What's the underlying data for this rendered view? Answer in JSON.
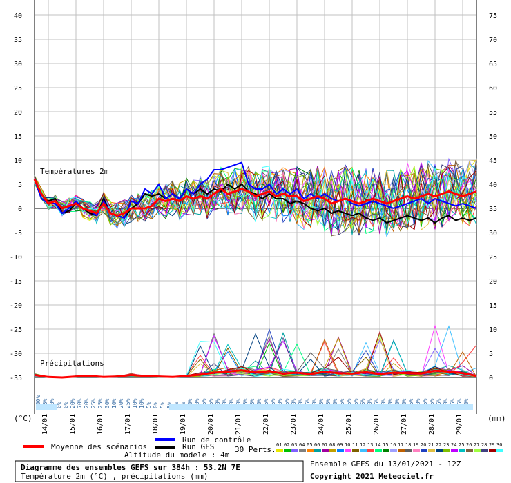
{
  "chart_data": {
    "type": "line",
    "title": "Diagramme des ensembles GEFS sur 384h : 53.2N 7E",
    "subtitle": "Température 2m (°C) , précipitations (mm)",
    "model_altitude": "Altitude du modele : 4m",
    "run_label": "Ensemble GEFS du 13/01/2021 - 12Z",
    "copyright": "Copyright 2021 Meteociel.fr",
    "temp_label": "Températures 2m",
    "precip_label": "Précipitations",
    "left_unit": "(°C)",
    "right_unit": "(mm)",
    "left_axis": {
      "min": -35,
      "max": 40,
      "ticks": [
        40,
        35,
        30,
        25,
        20,
        15,
        10,
        5,
        0,
        -5,
        -10,
        -15,
        -20,
        -25,
        -30,
        -35
      ]
    },
    "right_axis": {
      "min": 0,
      "max": 75,
      "ticks": [
        75,
        70,
        65,
        60,
        55,
        50,
        45,
        40,
        35,
        30,
        25,
        20,
        15,
        10,
        5,
        0
      ]
    },
    "x_axis": {
      "start_day": 13.5,
      "end_day": 29.5,
      "labels": [
        "14/01",
        "15/01",
        "16/01",
        "17/01",
        "18/01",
        "19/01",
        "20/01",
        "21/01",
        "22/01",
        "23/01",
        "24/01",
        "25/01",
        "26/01",
        "27/01",
        "28/01",
        "29/01"
      ]
    },
    "grid": true,
    "legend": {
      "mean": "Moyenne des scénarios",
      "control": "Run de contrôle",
      "gfs": "Run GFS",
      "perts": "30 Perts.",
      "members": [
        "01",
        "02",
        "03",
        "04",
        "05",
        "06",
        "07",
        "08",
        "09",
        "10",
        "11",
        "12",
        "13",
        "14",
        "15",
        "16",
        "17",
        "18",
        "19",
        "20",
        "21",
        "22",
        "23",
        "24",
        "25",
        "26",
        "27",
        "28",
        "29",
        "30"
      ]
    },
    "member_colors": [
      "#e8e800",
      "#00c000",
      "#8060ff",
      "#808080",
      "#ff8000",
      "#00a0a0",
      "#a000a0",
      "#c0a000",
      "#0080ff",
      "#ff40ff",
      "#806000",
      "#40c0ff",
      "#ff4040",
      "#00ff80",
      "#008000",
      "#a0a0ff",
      "#c06000",
      "#606060",
      "#ff80c0",
      "#2040c0",
      "#e0c040",
      "#004080",
      "#80c000",
      "#c000ff",
      "#00c0c0",
      "#806040",
      "#a0ff40",
      "#404080",
      "#a00000",
      "#40ffff"
    ],
    "series": [
      {
        "name": "Moyenne des scénarios",
        "color": "#ff0000",
        "x": [
          13.5,
          13.75,
          14,
          14.25,
          14.5,
          14.75,
          15,
          15.25,
          15.5,
          15.75,
          16,
          16.25,
          16.5,
          16.75,
          17,
          17.25,
          17.5,
          17.75,
          18,
          18.25,
          18.5,
          18.75,
          19,
          19.25,
          19.5,
          19.75,
          20,
          20.25,
          20.5,
          20.75,
          21,
          21.25,
          21.5,
          21.75,
          22,
          22.25,
          22.5,
          22.75,
          23,
          23.25,
          23.5,
          23.75,
          24,
          24.25,
          24.5,
          24.75,
          25,
          25.25,
          25.5,
          25.75,
          26,
          26.25,
          26.5,
          26.75,
          27,
          27.25,
          27.5,
          27.75,
          28,
          28.25,
          28.5,
          28.75,
          29,
          29.25,
          29.5
        ],
        "y": [
          6,
          3,
          1,
          1.5,
          0,
          0.5,
          1,
          0,
          -0.5,
          -1,
          1,
          -1,
          -1.5,
          -1,
          0,
          0,
          0,
          0.5,
          2,
          1.5,
          2,
          1.5,
          2.5,
          2,
          2.5,
          2,
          3,
          4,
          3,
          3.5,
          4,
          3.5,
          2.5,
          3,
          3.5,
          2.5,
          3,
          2.5,
          2.5,
          1.5,
          2,
          2.5,
          2,
          1,
          1.5,
          2,
          1.5,
          1,
          1.5,
          2,
          1.5,
          1,
          1.5,
          2,
          2.5,
          2,
          2.5,
          3,
          2.5,
          3,
          3.5,
          3,
          2.5,
          3,
          3.5
        ]
      },
      {
        "name": "Run de contrôle",
        "color": "#0000ff",
        "x": [
          13.5,
          13.75,
          14,
          14.25,
          14.5,
          14.75,
          15,
          15.25,
          15.5,
          15.75,
          16,
          16.25,
          16.5,
          16.75,
          17,
          17.25,
          17.5,
          17.75,
          18,
          18.25,
          18.5,
          18.75,
          19,
          19.25,
          19.5,
          19.75,
          20,
          20.25,
          20.5,
          20.75,
          21,
          21.25,
          21.5,
          21.75,
          22,
          22.25,
          22.5,
          22.75,
          23,
          23.25,
          23.5,
          23.75,
          24,
          24.25,
          24.5,
          24.75,
          25,
          25.25,
          25.5,
          25.75,
          26,
          26.25,
          26.5,
          26.75,
          27,
          27.25,
          27.5,
          27.75,
          28,
          28.25,
          28.5,
          28.75,
          29,
          29.25,
          29.5
        ],
        "y": [
          6,
          2,
          1,
          1,
          -1,
          0,
          1.5,
          0,
          -0.5,
          -1.5,
          1.5,
          -1,
          -1.5,
          -2,
          1.5,
          1,
          4,
          3,
          5,
          2,
          3,
          2,
          4,
          3,
          5,
          6,
          8,
          8,
          8.5,
          9,
          9.5,
          5,
          4,
          4,
          5,
          3,
          4,
          3,
          4,
          2,
          3,
          2,
          3,
          2,
          1.5,
          2,
          1,
          0.5,
          1,
          1.5,
          1,
          0.5,
          0,
          0.5,
          1,
          1.5,
          2,
          1,
          2,
          1.5,
          1,
          0.5,
          1,
          0.5,
          0
        ]
      },
      {
        "name": "Run GFS",
        "color": "#000000",
        "x": [
          13.5,
          13.75,
          14,
          14.25,
          14.5,
          14.75,
          15,
          15.25,
          15.5,
          15.75,
          16,
          16.25,
          16.5,
          16.75,
          17,
          17.25,
          17.5,
          17.75,
          18,
          18.25,
          18.5,
          18.75,
          19,
          19.25,
          19.5,
          19.75,
          20,
          20.25,
          20.5,
          20.75,
          21,
          21.25,
          21.5,
          21.75,
          22,
          22.25,
          22.5,
          22.75,
          23,
          23.25,
          23.5,
          23.75,
          24,
          24.25,
          24.5,
          24.75,
          25,
          25.25,
          25.5,
          25.75,
          26,
          26.25,
          26.5,
          26.75,
          27,
          27.25,
          27.5,
          27.75,
          28,
          28.25,
          28.5,
          28.75,
          29,
          29.25,
          29.5
        ],
        "y": [
          6,
          2,
          1.5,
          2,
          -1,
          -0.5,
          1,
          0,
          -1,
          -1.5,
          2,
          -1,
          -1.5,
          -2,
          0,
          1,
          3,
          2.5,
          3,
          2,
          3,
          2,
          4,
          3,
          4,
          3,
          4,
          3.5,
          5,
          4,
          5,
          3.5,
          3,
          2,
          3,
          2,
          2,
          1,
          1.5,
          1,
          0,
          -0.5,
          0,
          -1,
          -0.5,
          -1,
          -1.5,
          -1,
          -2,
          -2.5,
          -2,
          -3,
          -2.5,
          -2,
          -1.5,
          -2,
          -2.5,
          -2,
          -3,
          -2,
          -1.5,
          -2.5,
          -2,
          -2.5,
          -2
        ]
      }
    ],
    "precip_mean": {
      "x": [
        13.5,
        14,
        14.5,
        15,
        15.5,
        16,
        16.5,
        17,
        17.5,
        18,
        18.5,
        19,
        19.5,
        20,
        20.5,
        21,
        21.5,
        22,
        22.5,
        23,
        23.5,
        24,
        24.5,
        25,
        25.5,
        26,
        26.5,
        27,
        27.5,
        28,
        28.5,
        29,
        29.5
      ],
      "y": [
        0.5,
        0.1,
        0,
        0.2,
        0.3,
        0.1,
        0.2,
        0.5,
        0.3,
        0.2,
        0.1,
        0.3,
        0.6,
        1.0,
        1.2,
        1.5,
        1.0,
        1.3,
        0.8,
        1.0,
        0.7,
        1.2,
        0.9,
        0.8,
        1.1,
        0.7,
        1.0,
        0.9,
        0.8,
        1.4,
        1.2,
        0.9,
        0.3
      ]
    },
    "precip_prob_labels": [
      "100%",
      "95%",
      "10%",
      "0%",
      "0%",
      "20%",
      "70%",
      "20%",
      "25%",
      "25%",
      "30%",
      "10%",
      "20%",
      "25%",
      "10%",
      "10%",
      "5%",
      "0%",
      "5%",
      "5%",
      "5%",
      "5%",
      "10%",
      "10%",
      "25%",
      "15%",
      "20%",
      "20%",
      "20%",
      "20%",
      "25%",
      "35%",
      "30%",
      "25%",
      "35%",
      "40%",
      "45%",
      "50%",
      "40%",
      "35%",
      "40%",
      "45%",
      "35%",
      "40%",
      "45%",
      "45%",
      "35%",
      "35%",
      "40%",
      "25%",
      "40%",
      "20%",
      "30%",
      "20%",
      "35%",
      "20%",
      "25%",
      "15%",
      "25%",
      "10%",
      "15%",
      "15%",
      "10%"
    ]
  }
}
